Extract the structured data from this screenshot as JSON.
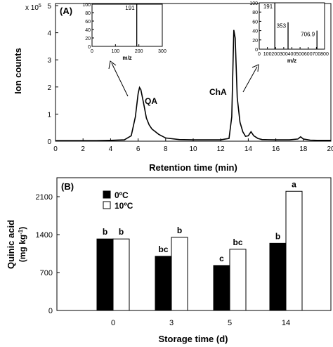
{
  "chart_data": [
    {
      "panel_label": "(A)",
      "type": "line",
      "xlabel": "Retention time (min)",
      "ylabel": "Ion counts",
      "y_multiplier": "x 10",
      "y_multiplier_exp": "5",
      "xlim": [
        0,
        20
      ],
      "ylim": [
        0,
        5
      ],
      "x_ticks": [
        "0",
        "2",
        "4",
        "6",
        "8",
        "10",
        "12",
        "14",
        "16",
        "18",
        "20"
      ],
      "y_ticks": [
        "0",
        "1",
        "2",
        "3",
        "4",
        "5"
      ],
      "series": [
        {
          "x": [
            0,
            1,
            2,
            3,
            4,
            5,
            5.5,
            5.8,
            6.0,
            6.1,
            6.2,
            6.4,
            6.6,
            6.8,
            7.0,
            7.5,
            8,
            9,
            10,
            11,
            12,
            12.6,
            12.8,
            12.95,
            13.05,
            13.2,
            13.4,
            13.6,
            13.8,
            14.0,
            14.2,
            14.4,
            14.7,
            15,
            16,
            17,
            17.6,
            17.8,
            18.0,
            18.5,
            19,
            20
          ],
          "y": [
            0.02,
            0.02,
            0.02,
            0.02,
            0.03,
            0.05,
            0.2,
            0.9,
            1.75,
            1.98,
            1.9,
            1.4,
            0.85,
            0.6,
            0.45,
            0.25,
            0.12,
            0.06,
            0.05,
            0.05,
            0.05,
            0.1,
            0.9,
            4.1,
            3.8,
            1.6,
            0.7,
            0.35,
            0.18,
            0.2,
            0.35,
            0.2,
            0.1,
            0.06,
            0.05,
            0.05,
            0.08,
            0.16,
            0.08,
            0.04,
            0.03,
            0.03
          ]
        }
      ],
      "annotations": [
        {
          "text": "QA",
          "x": 6.1
        },
        {
          "text": "ChA",
          "x": 13.0
        }
      ],
      "insets": [
        {
          "xlabel": "m/z",
          "x_ticks": [
            "0",
            "100",
            "200",
            "300"
          ],
          "y_ticks": [
            "0",
            "20",
            "40",
            "60",
            "80",
            "100"
          ],
          "xlim": [
            0,
            300
          ],
          "ylim": [
            0,
            100
          ],
          "peaks": [
            {
              "x": 191,
              "y": 100,
              "label": "191"
            }
          ]
        },
        {
          "xlabel": "m/z",
          "x_ticks": [
            "0",
            "100",
            "200",
            "300",
            "400",
            "500",
            "600",
            "700",
            "800"
          ],
          "y_ticks": [
            "0",
            "20",
            "40",
            "60",
            "80",
            "100"
          ],
          "xlim": [
            0,
            800
          ],
          "ylim": [
            0,
            100
          ],
          "peaks": [
            {
              "x": 191,
              "y": 100,
              "label": "191"
            },
            {
              "x": 353,
              "y": 58,
              "label": "353"
            },
            {
              "x": 707,
              "y": 40,
              "label": "706.9"
            }
          ]
        }
      ]
    },
    {
      "panel_label": "(B)",
      "type": "bar",
      "xlabel": "Storage time (d)",
      "ylabel": "Quinic acid",
      "ylabel2": "(mg kg",
      "ylabel2_sup": "-1",
      "ylabel2_end": ")",
      "categories": [
        "0",
        "3",
        "5",
        "14"
      ],
      "ylim": [
        0,
        2450
      ],
      "y_ticks": [
        "0",
        "700",
        "1400",
        "2100"
      ],
      "y_tick_values": [
        0,
        700,
        1400,
        2100
      ],
      "series": [
        {
          "name": "0ºC",
          "color": "#000000",
          "values": [
            1320,
            1000,
            830,
            1240
          ],
          "letters": [
            "b",
            "bc",
            "c",
            "b"
          ]
        },
        {
          "name": "10ºC",
          "color": "#ffffff",
          "values": [
            1320,
            1350,
            1130,
            2200
          ],
          "letters": [
            "b",
            "b",
            "bc",
            "a"
          ]
        }
      ]
    }
  ]
}
